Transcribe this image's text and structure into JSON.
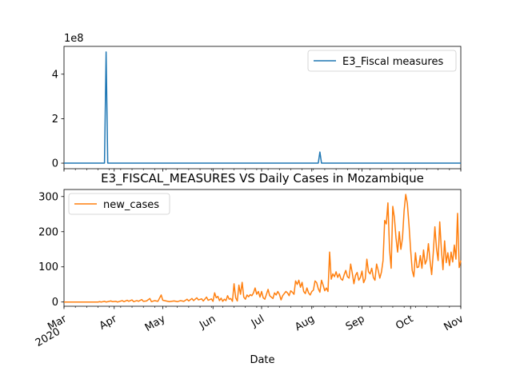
{
  "chart_data": [
    {
      "type": "line",
      "title": "",
      "xlabel": "",
      "ylabel": "",
      "y_offset_label": "1e8",
      "ylim": [
        -0.25,
        5.25
      ],
      "yticks": [
        0,
        2,
        4
      ],
      "xlim": [
        "2020-03-01",
        "2020-11-01"
      ],
      "legend": "upper right",
      "series": [
        {
          "name": "E3_Fiscal measures",
          "color": "#1f77b4",
          "points": [
            [
              "2020-03-01",
              0
            ],
            [
              "2020-03-26",
              0
            ],
            [
              "2020-03-27",
              5.0
            ],
            [
              "2020-03-28",
              0
            ],
            [
              "2020-08-05",
              0
            ],
            [
              "2020-08-06",
              0.5
            ],
            [
              "2020-08-07",
              0
            ],
            [
              "2020-11-01",
              0
            ]
          ]
        }
      ]
    },
    {
      "type": "line",
      "title": "E3_FISCAL_MEASURES VS Daily Cases in Mozambique",
      "xlabel": "Date",
      "ylabel": "",
      "ylim": [
        -12,
        320
      ],
      "yticks": [
        0,
        100,
        200,
        300
      ],
      "xlim": [
        "2020-03-01",
        "2020-11-01"
      ],
      "xticks": [
        {
          "date": "2020-03-01",
          "label": "Mar",
          "sublabel": "2020"
        },
        {
          "date": "2020-04-01",
          "label": "Apr"
        },
        {
          "date": "2020-05-01",
          "label": "May"
        },
        {
          "date": "2020-06-01",
          "label": "Jun"
        },
        {
          "date": "2020-07-01",
          "label": "Jul"
        },
        {
          "date": "2020-08-01",
          "label": "Aug"
        },
        {
          "date": "2020-09-01",
          "label": "Sep"
        },
        {
          "date": "2020-10-01",
          "label": "Oct"
        },
        {
          "date": "2020-11-01",
          "label": "Nov"
        }
      ],
      "legend": "upper left",
      "series": [
        {
          "name": "new_cases",
          "color": "#ff7f0e",
          "points": [
            [
              "2020-03-01",
              0
            ],
            [
              "2020-03-22",
              0
            ],
            [
              "2020-03-23",
              1
            ],
            [
              "2020-03-24",
              0
            ],
            [
              "2020-03-26",
              2
            ],
            [
              "2020-03-27",
              0
            ],
            [
              "2020-03-30",
              3
            ],
            [
              "2020-03-31",
              1
            ],
            [
              "2020-04-02",
              2
            ],
            [
              "2020-04-03",
              0
            ],
            [
              "2020-04-06",
              4
            ],
            [
              "2020-04-07",
              1
            ],
            [
              "2020-04-09",
              5
            ],
            [
              "2020-04-10",
              2
            ],
            [
              "2020-04-12",
              6
            ],
            [
              "2020-04-13",
              1
            ],
            [
              "2020-04-15",
              4
            ],
            [
              "2020-04-16",
              2
            ],
            [
              "2020-04-18",
              7
            ],
            [
              "2020-04-19",
              2
            ],
            [
              "2020-04-21",
              3
            ],
            [
              "2020-04-23",
              10
            ],
            [
              "2020-04-24",
              1
            ],
            [
              "2020-04-26",
              4
            ],
            [
              "2020-04-28",
              2
            ],
            [
              "2020-04-30",
              20
            ],
            [
              "2020-05-01",
              5
            ],
            [
              "2020-05-03",
              3
            ],
            [
              "2020-05-05",
              1
            ],
            [
              "2020-05-08",
              3
            ],
            [
              "2020-05-10",
              1
            ],
            [
              "2020-05-12",
              4
            ],
            [
              "2020-05-14",
              2
            ],
            [
              "2020-05-16",
              8
            ],
            [
              "2020-05-17",
              3
            ],
            [
              "2020-05-19",
              10
            ],
            [
              "2020-05-20",
              4
            ],
            [
              "2020-05-22",
              12
            ],
            [
              "2020-05-23",
              6
            ],
            [
              "2020-05-25",
              9
            ],
            [
              "2020-05-26",
              3
            ],
            [
              "2020-05-28",
              14
            ],
            [
              "2020-05-29",
              5
            ],
            [
              "2020-05-31",
              9
            ],
            [
              "2020-06-01",
              2
            ],
            [
              "2020-06-02",
              26
            ],
            [
              "2020-06-03",
              12
            ],
            [
              "2020-06-04",
              16
            ],
            [
              "2020-06-05",
              4
            ],
            [
              "2020-06-06",
              11
            ],
            [
              "2020-06-07",
              2
            ],
            [
              "2020-06-08",
              8
            ],
            [
              "2020-06-09",
              4
            ],
            [
              "2020-06-10",
              18
            ],
            [
              "2020-06-11",
              8
            ],
            [
              "2020-06-12",
              10
            ],
            [
              "2020-06-13",
              2
            ],
            [
              "2020-06-14",
              52
            ],
            [
              "2020-06-15",
              12
            ],
            [
              "2020-06-16",
              3
            ],
            [
              "2020-06-17",
              48
            ],
            [
              "2020-06-18",
              22
            ],
            [
              "2020-06-19",
              56
            ],
            [
              "2020-06-20",
              14
            ],
            [
              "2020-06-21",
              8
            ],
            [
              "2020-06-22",
              20
            ],
            [
              "2020-06-23",
              15
            ],
            [
              "2020-06-24",
              21
            ],
            [
              "2020-06-25",
              18
            ],
            [
              "2020-06-26",
              26
            ],
            [
              "2020-06-27",
              40
            ],
            [
              "2020-06-28",
              22
            ],
            [
              "2020-06-29",
              30
            ],
            [
              "2020-06-30",
              14
            ],
            [
              "2020-07-01",
              30
            ],
            [
              "2020-07-02",
              12
            ],
            [
              "2020-07-03",
              8
            ],
            [
              "2020-07-04",
              22
            ],
            [
              "2020-07-05",
              36
            ],
            [
              "2020-07-06",
              18
            ],
            [
              "2020-07-07",
              14
            ],
            [
              "2020-07-08",
              10
            ],
            [
              "2020-07-09",
              26
            ],
            [
              "2020-07-10",
              20
            ],
            [
              "2020-07-11",
              30
            ],
            [
              "2020-07-12",
              22
            ],
            [
              "2020-07-13",
              6
            ],
            [
              "2020-07-14",
              18
            ],
            [
              "2020-07-15",
              24
            ],
            [
              "2020-07-16",
              30
            ],
            [
              "2020-07-17",
              26
            ],
            [
              "2020-07-18",
              18
            ],
            [
              "2020-07-19",
              32
            ],
            [
              "2020-07-20",
              28
            ],
            [
              "2020-07-21",
              22
            ],
            [
              "2020-07-22",
              60
            ],
            [
              "2020-07-23",
              50
            ],
            [
              "2020-07-24",
              62
            ],
            [
              "2020-07-25",
              42
            ],
            [
              "2020-07-26",
              56
            ],
            [
              "2020-07-27",
              30
            ],
            [
              "2020-07-28",
              24
            ],
            [
              "2020-07-29",
              40
            ],
            [
              "2020-07-30",
              26
            ],
            [
              "2020-07-31",
              20
            ],
            [
              "2020-08-01",
              30
            ],
            [
              "2020-08-02",
              34
            ],
            [
              "2020-08-03",
              60
            ],
            [
              "2020-08-04",
              55
            ],
            [
              "2020-08-05",
              38
            ],
            [
              "2020-08-06",
              28
            ],
            [
              "2020-08-07",
              62
            ],
            [
              "2020-08-08",
              48
            ],
            [
              "2020-08-09",
              32
            ],
            [
              "2020-08-10",
              40
            ],
            [
              "2020-08-11",
              30
            ],
            [
              "2020-08-12",
              142
            ],
            [
              "2020-08-13",
              65
            ],
            [
              "2020-08-14",
              80
            ],
            [
              "2020-08-15",
              72
            ],
            [
              "2020-08-16",
              86
            ],
            [
              "2020-08-17",
              70
            ],
            [
              "2020-08-18",
              80
            ],
            [
              "2020-08-19",
              66
            ],
            [
              "2020-08-20",
              62
            ],
            [
              "2020-08-21",
              78
            ],
            [
              "2020-08-22",
              90
            ],
            [
              "2020-08-23",
              72
            ],
            [
              "2020-08-24",
              68
            ],
            [
              "2020-08-25",
              108
            ],
            [
              "2020-08-26",
              82
            ],
            [
              "2020-08-27",
              52
            ],
            [
              "2020-08-28",
              76
            ],
            [
              "2020-08-29",
              84
            ],
            [
              "2020-08-30",
              62
            ],
            [
              "2020-08-31",
              70
            ],
            [
              "2020-09-01",
              88
            ],
            [
              "2020-09-02",
              55
            ],
            [
              "2020-09-03",
              66
            ],
            [
              "2020-09-04",
              122
            ],
            [
              "2020-09-05",
              86
            ],
            [
              "2020-09-06",
              80
            ],
            [
              "2020-09-07",
              96
            ],
            [
              "2020-09-08",
              70
            ],
            [
              "2020-09-09",
              62
            ],
            [
              "2020-09-10",
              108
            ],
            [
              "2020-09-11",
              90
            ],
            [
              "2020-09-12",
              68
            ],
            [
              "2020-09-13",
              85
            ],
            [
              "2020-09-14",
              118
            ],
            [
              "2020-09-15",
              232
            ],
            [
              "2020-09-16",
              222
            ],
            [
              "2020-09-17",
              282
            ],
            [
              "2020-09-18",
              150
            ],
            [
              "2020-09-19",
              96
            ],
            [
              "2020-09-20",
              272
            ],
            [
              "2020-09-21",
              240
            ],
            [
              "2020-09-22",
              182
            ],
            [
              "2020-09-23",
              142
            ],
            [
              "2020-09-24",
              200
            ],
            [
              "2020-09-25",
              150
            ],
            [
              "2020-09-26",
              182
            ],
            [
              "2020-09-27",
              260
            ],
            [
              "2020-09-28",
              306
            ],
            [
              "2020-09-29",
              280
            ],
            [
              "2020-09-30",
              220
            ],
            [
              "2020-10-01",
              150
            ],
            [
              "2020-10-02",
              90
            ],
            [
              "2020-10-03",
              72
            ],
            [
              "2020-10-04",
              140
            ],
            [
              "2020-10-05",
              98
            ],
            [
              "2020-10-06",
              100
            ],
            [
              "2020-10-07",
              132
            ],
            [
              "2020-10-08",
              96
            ],
            [
              "2020-10-09",
              148
            ],
            [
              "2020-10-10",
              108
            ],
            [
              "2020-10-11",
              120
            ],
            [
              "2020-10-12",
              166
            ],
            [
              "2020-10-13",
              118
            ],
            [
              "2020-10-14",
              78
            ],
            [
              "2020-10-15",
              140
            ],
            [
              "2020-10-16",
              214
            ],
            [
              "2020-10-17",
              152
            ],
            [
              "2020-10-18",
              118
            ],
            [
              "2020-10-19",
              228
            ],
            [
              "2020-10-20",
              150
            ],
            [
              "2020-10-21",
              92
            ],
            [
              "2020-10-22",
              174
            ],
            [
              "2020-10-23",
              112
            ],
            [
              "2020-10-24",
              140
            ],
            [
              "2020-10-25",
              104
            ],
            [
              "2020-10-26",
              142
            ],
            [
              "2020-10-27",
              114
            ],
            [
              "2020-10-28",
              162
            ],
            [
              "2020-10-29",
              122
            ],
            [
              "2020-10-30",
              252
            ],
            [
              "2020-10-31",
              98
            ],
            [
              "2020-11-01",
              118
            ]
          ]
        }
      ]
    }
  ]
}
